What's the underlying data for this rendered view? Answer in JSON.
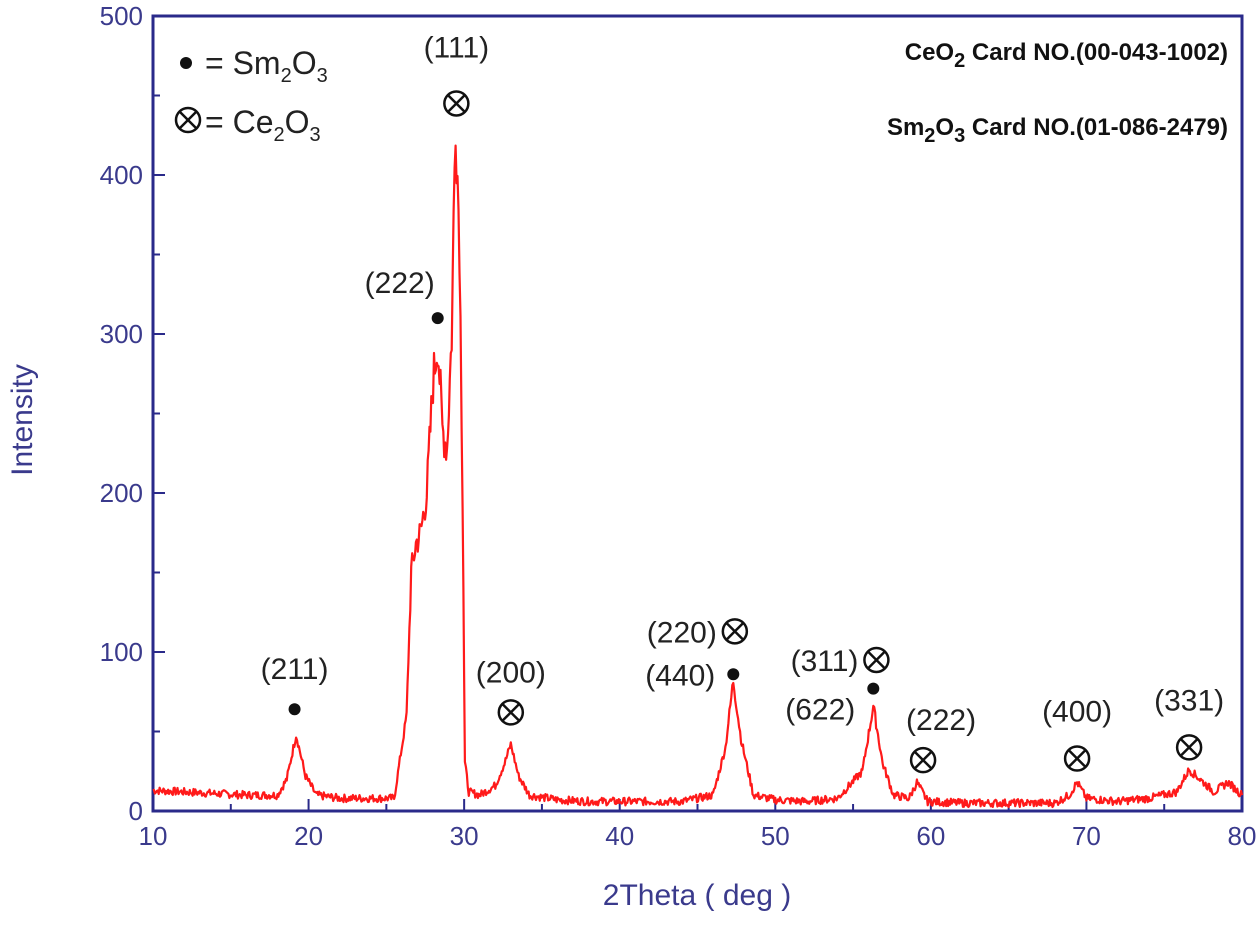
{
  "chart_data": {
    "type": "line",
    "xlabel": "2Theta ( deg )",
    "ylabel": "Intensity",
    "xlim": [
      10,
      80
    ],
    "ylim": [
      0,
      500
    ],
    "xticks": [
      "10",
      "20",
      "30",
      "40",
      "50",
      "60",
      "70",
      "80"
    ],
    "yticks": [
      "0",
      "100",
      "200",
      "300",
      "400",
      "500"
    ],
    "grid": false,
    "line_color": "#ff1a1a",
    "axis_color": "#2a2a8a",
    "text_color": "#3a3a8c",
    "series": [
      {
        "x": [
          10,
          12,
          14,
          16,
          18,
          18.6,
          19.2,
          19.8,
          20.5,
          22,
          24,
          25.5,
          26.3,
          26.6,
          26.9,
          27.2,
          27.6,
          28.0,
          28.3,
          28.6,
          28.9,
          29.2,
          29.45,
          29.7,
          29.9,
          30.05,
          30.3,
          31,
          32,
          32.6,
          33.0,
          33.5,
          34.2,
          36,
          38,
          40,
          42,
          44,
          46,
          46.8,
          47.3,
          47.8,
          48.6,
          50,
          52,
          54,
          55.6,
          56.3,
          56.9,
          57.6,
          58.6,
          59.1,
          59.8,
          62,
          65,
          68,
          68.9,
          69.4,
          70.0,
          72,
          74,
          75.8,
          76.6,
          77.3,
          78.2,
          79.1,
          80
        ],
        "y": [
          13,
          12,
          11,
          10,
          10,
          20,
          48,
          22,
          10,
          8,
          8,
          8,
          60,
          150,
          168,
          175,
          200,
          270,
          296,
          240,
          228,
          300,
          440,
          360,
          200,
          30,
          12,
          10,
          16,
          30,
          42,
          22,
          10,
          7,
          6,
          6,
          6,
          6,
          10,
          40,
          82,
          45,
          10,
          7,
          6,
          8,
          25,
          66,
          30,
          10,
          8,
          18,
          6,
          5,
          5,
          5,
          10,
          18,
          8,
          6,
          8,
          12,
          26,
          20,
          12,
          18,
          10
        ]
      }
    ],
    "legend": [
      {
        "marker": "dot",
        "text": "= Sm",
        "sub1": "2",
        "mid": "O",
        "sub2": "3"
      },
      {
        "marker": "otimes",
        "text": "= Ce",
        "sub1": "2",
        "mid": "O",
        "sub2": "3"
      }
    ],
    "card_lines": [
      {
        "pre": "CeO",
        "sub": "2",
        "post": " Card NO.(00-043-1002)"
      },
      {
        "pre": "Sm",
        "sub": "2",
        "mid": "O",
        "sub2": "3",
        "post": " Card NO.(01-086-2479)"
      }
    ],
    "annotations": [
      {
        "label": "(211)",
        "marker": "dot",
        "x": 19.1,
        "y": 64
      },
      {
        "label": "(222)",
        "marker": "dot",
        "x": 28.3,
        "y": 310
      },
      {
        "label": "(111)",
        "marker": "otimes",
        "x": 29.5,
        "y": 445
      },
      {
        "label": "(200)",
        "marker": "otimes",
        "x": 33.0,
        "y": 62
      },
      {
        "label": "(220)",
        "marker": "otimes",
        "x": 47.4,
        "y": 113
      },
      {
        "label": "(440)",
        "marker": "dot",
        "x": 47.3,
        "y": 86
      },
      {
        "label": "(311)",
        "marker": "otimes",
        "x": 56.5,
        "y": 95
      },
      {
        "label": "(622)",
        "marker": "dot",
        "x": 56.3,
        "y": 77
      },
      {
        "label": "(222)",
        "marker": "otimes",
        "x": 59.5,
        "y": 32
      },
      {
        "label": "(400)",
        "marker": "otimes",
        "x": 69.4,
        "y": 33
      },
      {
        "label": "(331)",
        "marker": "otimes",
        "x": 76.6,
        "y": 40
      }
    ]
  }
}
